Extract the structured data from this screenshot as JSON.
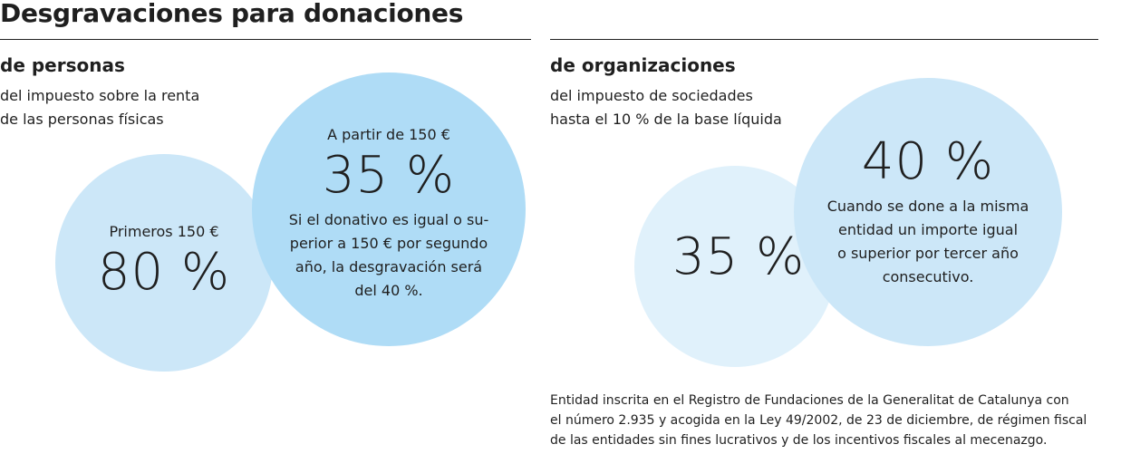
{
  "title": "Desgravaciones para donaciones",
  "personas": {
    "heading": "de personas",
    "subtitle_line1": "del impuesto sobre la renta",
    "subtitle_line2": "de las personas físicas",
    "first_circle": {
      "label": "Primeros 150 €",
      "value": "80 %"
    },
    "second_circle": {
      "label": "A partir de 150 €",
      "value": "35 %",
      "desc_line1": "Si el donativo es igual o su-",
      "desc_line2": "perior a 150 € por segundo",
      "desc_line3": "año, la desgravación será",
      "desc_line4": "del 40 %."
    }
  },
  "organizaciones": {
    "heading": "de organizaciones",
    "subtitle_line1": "del impuesto de sociedades",
    "subtitle_line2": "hasta el 10 % de la base líquida",
    "first_circle": {
      "value": "35 %"
    },
    "second_circle": {
      "value": "40 %",
      "desc_line1": "Cuando se done a la misma",
      "desc_line2": "entidad un importe igual",
      "desc_line3": "o superior por tercer año",
      "desc_line4": "consecutivo."
    }
  },
  "footnote": {
    "line1": "Entidad inscrita en el Registro de Fundaciones de la Generalitat de Catalunya con",
    "line2": "el número 2.935 y acogida en la Ley 49/2002, de 23 de diciembre, de régimen fiscal",
    "line3": "de las entidades sin fines lucrativos y de los incentivos fiscales al mecenazgo."
  },
  "colors": {
    "circle_light": "#cce7f8",
    "circle_mid": "#afdcf6",
    "circle_pale": "#e0f1fb",
    "text": "#1f1f1f"
  }
}
